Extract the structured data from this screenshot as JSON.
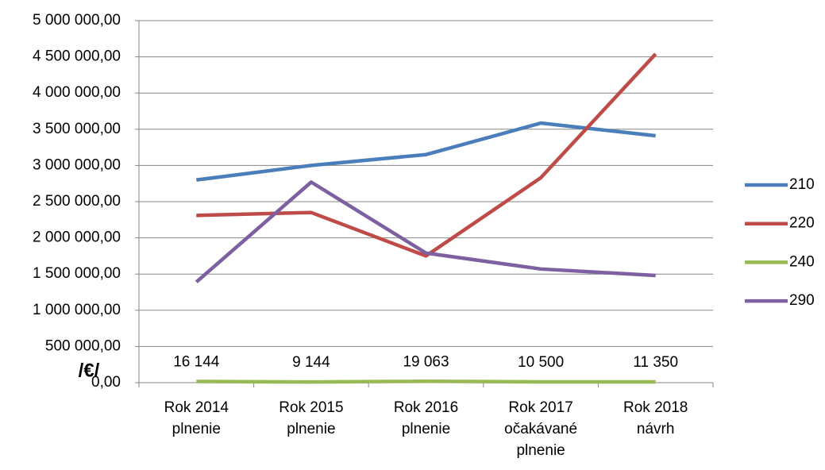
{
  "chart_data": {
    "type": "line",
    "annotation": "/€/",
    "categories": [
      "Rok 2014\nplnenie",
      "Rok 2015\nplnenie",
      "Rok 2016\nplnenie",
      "Rok 2017\nočakávané\nplnenie",
      "Rok 2018\nnávrh"
    ],
    "series": [
      {
        "name": "210",
        "color": "#4a7ebb",
        "values": [
          2800000,
          3000000,
          3150000,
          3585000,
          3410000
        ]
      },
      {
        "name": "220",
        "color": "#be4b48",
        "values": [
          2310000,
          2350000,
          1750000,
          2830000,
          4540000
        ]
      },
      {
        "name": "240",
        "color": "#98b954",
        "values": [
          16144,
          9144,
          19063,
          10500,
          11350
        ],
        "value_labels": [
          "16 144",
          "9 144",
          "19 063",
          "10 500",
          "11 350"
        ]
      },
      {
        "name": "290",
        "color": "#7d60a0",
        "values": [
          1390000,
          2770000,
          1790000,
          1570000,
          1480000
        ]
      }
    ],
    "ylim": [
      0,
      5000000
    ],
    "yticks": [
      {
        "value": 0,
        "label": "0,00"
      },
      {
        "value": 500000,
        "label": "500 000,00"
      },
      {
        "value": 1000000,
        "label": "1 000 000,00"
      },
      {
        "value": 1500000,
        "label": "1 500 000,00"
      },
      {
        "value": 2000000,
        "label": "2 000 000,00"
      },
      {
        "value": 2500000,
        "label": "2 500 000,00"
      },
      {
        "value": 3000000,
        "label": "3 000 000,00"
      },
      {
        "value": 3500000,
        "label": "3 500 000,00"
      },
      {
        "value": 4000000,
        "label": "4 000 000,00"
      },
      {
        "value": 4500000,
        "label": "4 500 000,00"
      },
      {
        "value": 5000000,
        "label": "5 000 000,00"
      }
    ],
    "grid": true,
    "legend": "right"
  }
}
